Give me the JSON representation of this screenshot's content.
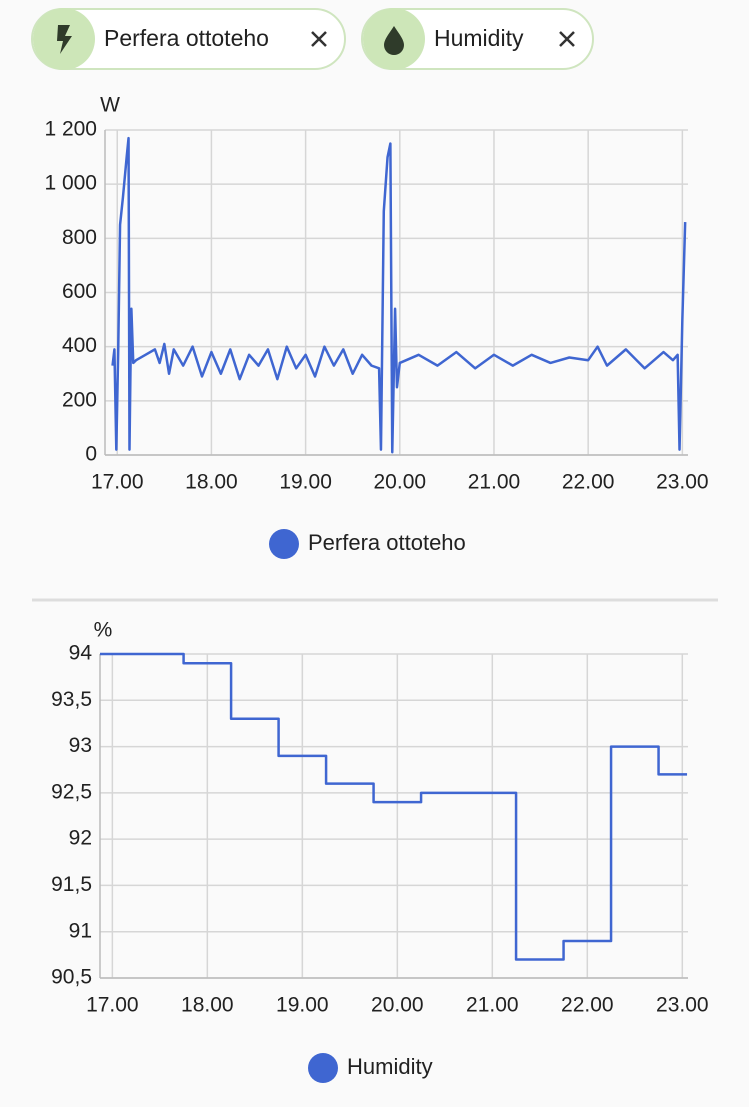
{
  "chips": [
    {
      "label": "Perfera ottoteho"
    },
    {
      "label": "Humidity"
    }
  ],
  "chart_data": [
    {
      "type": "line",
      "y_label": "W",
      "x": [
        16.95,
        16.97,
        16.99,
        17.01,
        17.03,
        17.06,
        17.1,
        17.12,
        17.13,
        17.14,
        17.15,
        17.17,
        17.2,
        17.3,
        17.4,
        17.45,
        17.5,
        17.55,
        17.6,
        17.7,
        17.8,
        17.9,
        18.0,
        18.1,
        18.2,
        18.3,
        18.4,
        18.5,
        18.6,
        18.7,
        18.8,
        18.9,
        19.0,
        19.1,
        19.2,
        19.3,
        19.4,
        19.5,
        19.6,
        19.7,
        19.78,
        19.8,
        19.83,
        19.87,
        19.9,
        19.92,
        19.95,
        19.97,
        20.0,
        20.2,
        20.4,
        20.6,
        20.8,
        21.0,
        21.2,
        21.4,
        21.6,
        21.8,
        22.0,
        22.1,
        22.2,
        22.4,
        22.6,
        22.8,
        22.9,
        22.95,
        22.97,
        23.0,
        23.03
      ],
      "series": [
        {
          "name": "Perfera ottoteho",
          "color": "#3f66d1",
          "values": [
            330,
            390,
            20,
            380,
            850,
            950,
            1100,
            1170,
            20,
            300,
            540,
            340,
            350,
            370,
            390,
            340,
            410,
            300,
            390,
            330,
            400,
            290,
            380,
            300,
            390,
            280,
            370,
            330,
            390,
            280,
            400,
            320,
            370,
            290,
            400,
            330,
            390,
            300,
            370,
            330,
            320,
            20,
            900,
            1100,
            1150,
            10,
            540,
            250,
            340,
            370,
            330,
            380,
            320,
            370,
            330,
            370,
            340,
            360,
            350,
            400,
            330,
            390,
            320,
            380,
            350,
            370,
            20,
            500,
            860
          ]
        }
      ],
      "xlim": [
        16.87,
        23.06
      ],
      "xticks": [
        {
          "value": 17,
          "label": "17.00"
        },
        {
          "value": 18,
          "label": "18.00"
        },
        {
          "value": 19,
          "label": "19.00"
        },
        {
          "value": 20,
          "label": "20.00"
        },
        {
          "value": 21,
          "label": "21.00"
        },
        {
          "value": 22,
          "label": "22.00"
        },
        {
          "value": 23,
          "label": "23.00"
        }
      ],
      "ylim": [
        0,
        1200
      ],
      "yticks": [
        0,
        200,
        400,
        600,
        800,
        {
          "value": 1000,
          "label": "1 000"
        },
        {
          "value": 1200,
          "label": "1 200"
        }
      ],
      "grid": true
    },
    {
      "type": "line",
      "step": "post",
      "y_label": "%",
      "x": [
        16.87,
        17.75,
        18.25,
        18.75,
        19.25,
        19.75,
        20.25,
        21.25,
        21.75,
        22.25,
        22.75,
        23.05
      ],
      "series": [
        {
          "name": "Humidity",
          "color": "#3f66d1",
          "values": [
            94,
            93.9,
            93.3,
            92.9,
            92.6,
            92.4,
            92.5,
            90.7,
            90.9,
            93,
            92.7,
            92.7
          ]
        }
      ],
      "xlim": [
        16.87,
        23.06
      ],
      "xticks": [
        {
          "value": 17,
          "label": "17.00"
        },
        {
          "value": 18,
          "label": "18.00"
        },
        {
          "value": 19,
          "label": "19.00"
        },
        {
          "value": 20,
          "label": "20.00"
        },
        {
          "value": 21,
          "label": "21.00"
        },
        {
          "value": 22,
          "label": "22.00"
        },
        {
          "value": 23,
          "label": "23.00"
        }
      ],
      "ylim": [
        90.5,
        94
      ],
      "yticks": [
        {
          "value": 90.5,
          "label": "90,5"
        },
        91,
        {
          "value": 91.5,
          "label": "91,5"
        },
        92,
        {
          "value": 92.5,
          "label": "92,5"
        },
        93,
        {
          "value": 93.5,
          "label": "93,5"
        },
        94
      ],
      "grid": true
    }
  ]
}
